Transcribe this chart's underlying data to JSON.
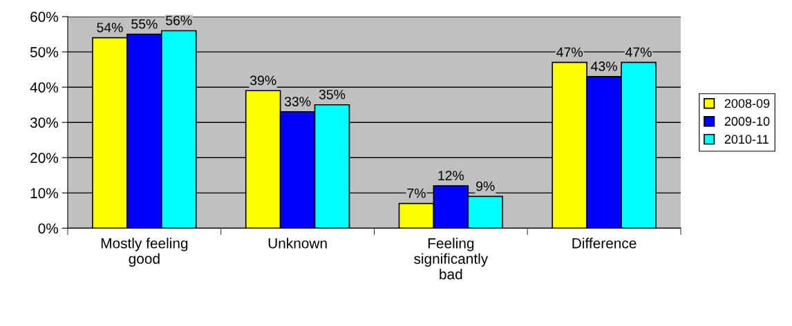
{
  "chart_data": {
    "type": "bar",
    "categories": [
      "Mostly feeling\ngood",
      "Unknown",
      "Feeling\nsignificantly\nbad",
      "Difference"
    ],
    "series": [
      {
        "name": "2008-09",
        "color": "#ffff00",
        "values": [
          54,
          39,
          7,
          47
        ],
        "value_labels": [
          "54%",
          "39%",
          "7%",
          "47%"
        ]
      },
      {
        "name": "2009-10",
        "color": "#0000ff",
        "values": [
          55,
          33,
          12,
          43
        ],
        "value_labels": [
          "55%",
          "33%",
          "12%",
          "43%"
        ]
      },
      {
        "name": "2010-11",
        "color": "#00ffff",
        "values": [
          56,
          35,
          9,
          47
        ],
        "value_labels": [
          "56%",
          "35%",
          "9%",
          "47%"
        ]
      }
    ],
    "ylim": [
      0,
      60
    ],
    "yticks": [
      {
        "value": 0,
        "label": "0%"
      },
      {
        "value": 10,
        "label": "10%"
      },
      {
        "value": 20,
        "label": "20%"
      },
      {
        "value": 30,
        "label": "30%"
      },
      {
        "value": 40,
        "label": "40%"
      },
      {
        "value": 50,
        "label": "50%"
      },
      {
        "value": 60,
        "label": "60%"
      }
    ],
    "grid": "y",
    "legend": "right"
  }
}
